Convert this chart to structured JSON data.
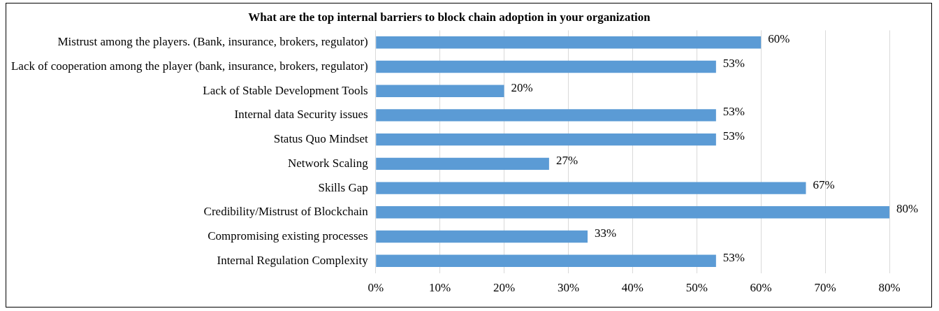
{
  "chart_data": {
    "type": "bar",
    "orientation": "horizontal",
    "title": "What are the top internal barriers to block chain adoption in your organization",
    "categories": [
      "Mistrust among the players. (Bank, insurance, brokers, regulator)",
      "Lack of cooperation among the player (bank, insurance, brokers, regulator)",
      "Lack of Stable Development Tools",
      "Internal data Security issues",
      "Status Quo Mindset",
      "Network Scaling",
      "Skills Gap",
      "Credibility/Mistrust of Blockchain",
      "Compromising existing processes",
      "Internal Regulation Complexity"
    ],
    "values": [
      60,
      53,
      20,
      53,
      53,
      27,
      67,
      80,
      33,
      53
    ],
    "value_labels": [
      "60%",
      "53%",
      "20%",
      "53%",
      "53%",
      "27%",
      "67%",
      "80%",
      "33%",
      "53%"
    ],
    "color": "#5b9bd5",
    "xlim": [
      0,
      80
    ],
    "xticks": [
      {
        "value": 0,
        "label": "0%"
      },
      {
        "value": 10,
        "label": "10%"
      },
      {
        "value": 20,
        "label": "20%"
      },
      {
        "value": 30,
        "label": "30%"
      },
      {
        "value": 40,
        "label": "40%"
      },
      {
        "value": 50,
        "label": "50%"
      },
      {
        "value": 60,
        "label": "60%"
      },
      {
        "value": 70,
        "label": "70%"
      },
      {
        "value": 80,
        "label": "80%"
      }
    ],
    "grid": "x"
  }
}
